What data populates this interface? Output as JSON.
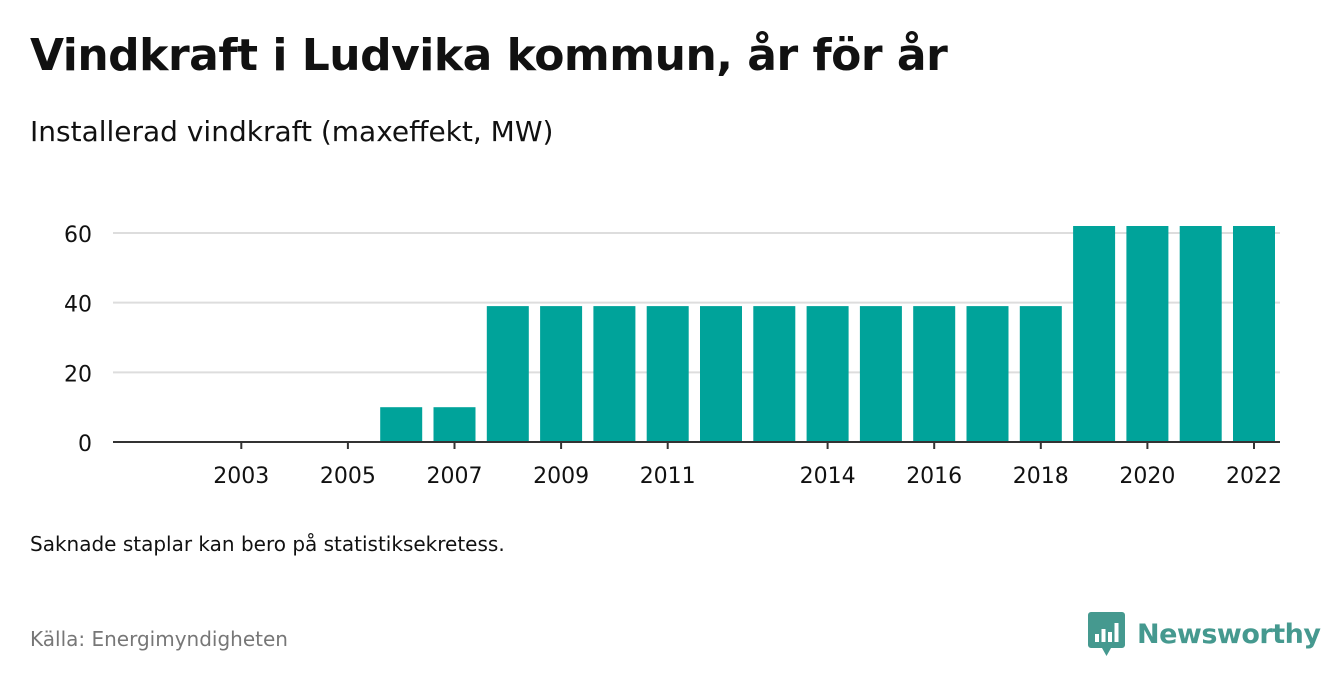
{
  "title": "Vindkraft i Ludvika kommun, år för år",
  "subtitle": "Installerad vindkraft (maxeffekt, MW)",
  "note": "Saknade staplar kan bero på statistiksekretess.",
  "source": "Källa: Energimyndigheten",
  "brand": {
    "name": "Newsworthy",
    "icon": "newsworthy-logo-icon"
  },
  "colors": {
    "bar": "#00a39a",
    "grid": "#dddddd",
    "axis": "#333333",
    "text": "#111111",
    "source": "#777777",
    "brand": "#45998f"
  },
  "chart_data": {
    "type": "bar",
    "categories": [
      "2002",
      "2003",
      "2004",
      "2005",
      "2006",
      "2007",
      "2008",
      "2009",
      "2010",
      "2011",
      "2012",
      "2013",
      "2014",
      "2015",
      "2016",
      "2017",
      "2018",
      "2019",
      "2020",
      "2021",
      "2022"
    ],
    "values": [
      0,
      0,
      0,
      0,
      10,
      10,
      39,
      39,
      39,
      39,
      39,
      39,
      39,
      39,
      39,
      39,
      39,
      62,
      62,
      62,
      62
    ],
    "x_tick_labels": [
      "2003",
      "2005",
      "2007",
      "2009",
      "2011",
      "2014",
      "2016",
      "2018",
      "2020",
      "2022"
    ],
    "y_ticks": [
      0,
      20,
      40,
      60
    ],
    "ylim": [
      0,
      62
    ],
    "grid": true,
    "legend": "none"
  }
}
